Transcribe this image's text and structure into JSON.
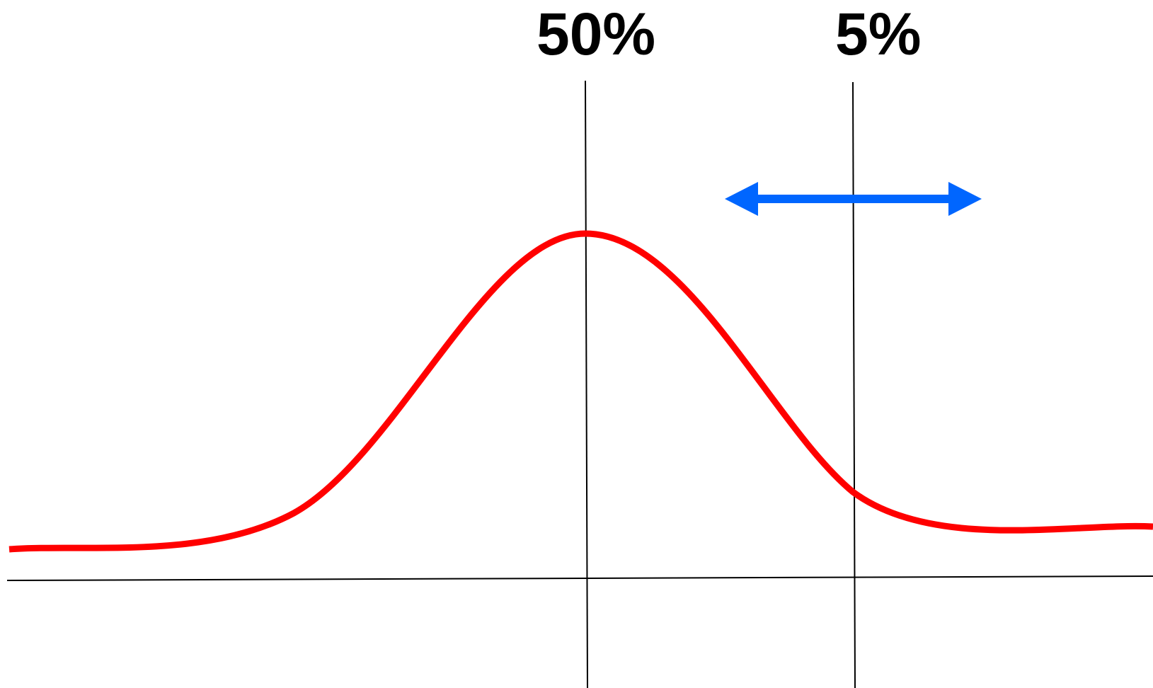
{
  "markers": [
    {
      "label": "50%"
    },
    {
      "label": "5%"
    }
  ],
  "colors": {
    "curve": "#ff0000",
    "arrow": "#0066ff",
    "lines": "#000000",
    "background": "#ffffff"
  },
  "icons": {
    "arrow": "double-headed-horizontal-arrow"
  }
}
